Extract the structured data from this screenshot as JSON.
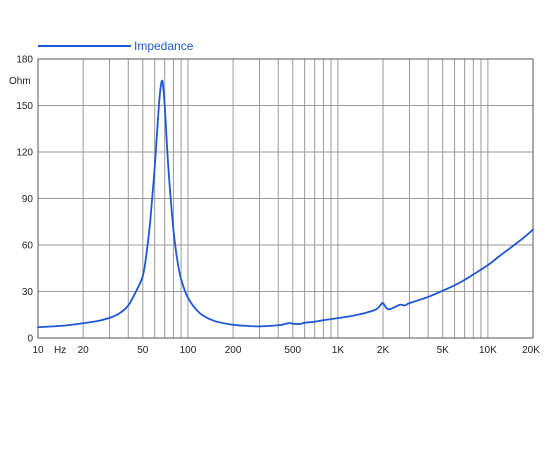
{
  "chart_data": {
    "type": "line",
    "x_scale": "log",
    "xlim": [
      10,
      20000
    ],
    "ylim": [
      0,
      180
    ],
    "y_unit": "Ohm",
    "x_unit": "Hz",
    "grid": true,
    "legend_position": "top-left",
    "x_ticks": [
      {
        "value": 10,
        "label": "10"
      },
      {
        "value": 20,
        "label": "20"
      },
      {
        "value": 50,
        "label": "50"
      },
      {
        "value": 100,
        "label": "100"
      },
      {
        "value": 200,
        "label": "200"
      },
      {
        "value": 500,
        "label": "500"
      },
      {
        "value": 1000,
        "label": "1K"
      },
      {
        "value": 2000,
        "label": "2K"
      },
      {
        "value": 5000,
        "label": "5K"
      },
      {
        "value": 10000,
        "label": "10K"
      },
      {
        "value": 20000,
        "label": "20K"
      }
    ],
    "y_ticks": [
      {
        "value": 0,
        "label": "0"
      },
      {
        "value": 30,
        "label": "30"
      },
      {
        "value": 60,
        "label": "60"
      },
      {
        "value": 90,
        "label": "90"
      },
      {
        "value": 120,
        "label": "120"
      },
      {
        "value": 150,
        "label": "150"
      },
      {
        "value": 180,
        "label": "180"
      }
    ],
    "series": [
      {
        "name": "Impedance",
        "color": "#1f57d6",
        "points": [
          [
            10,
            7.0
          ],
          [
            15,
            8.0
          ],
          [
            20,
            9.5
          ],
          [
            25,
            11.0
          ],
          [
            30,
            13.0
          ],
          [
            35,
            16.0
          ],
          [
            40,
            21.0
          ],
          [
            45,
            30.0
          ],
          [
            50,
            40.0
          ],
          [
            53,
            55.0
          ],
          [
            56,
            75.0
          ],
          [
            60,
            110.0
          ],
          [
            64,
            150.0
          ],
          [
            66,
            163.0
          ],
          [
            67,
            166.0
          ],
          [
            68,
            164.0
          ],
          [
            70,
            150.0
          ],
          [
            74,
            110.0
          ],
          [
            80,
            70.0
          ],
          [
            85,
            50.0
          ],
          [
            90,
            38.0
          ],
          [
            100,
            26.0
          ],
          [
            120,
            16.0
          ],
          [
            150,
            11.0
          ],
          [
            200,
            8.5
          ],
          [
            250,
            7.8
          ],
          [
            300,
            7.5
          ],
          [
            400,
            8.2
          ],
          [
            450,
            9.2
          ],
          [
            480,
            9.6
          ],
          [
            520,
            9.0
          ],
          [
            570,
            9.2
          ],
          [
            600,
            9.8
          ],
          [
            700,
            10.5
          ],
          [
            800,
            11.5
          ],
          [
            1000,
            12.8
          ],
          [
            1200,
            14.0
          ],
          [
            1500,
            16.0
          ],
          [
            1800,
            18.5
          ],
          [
            1950,
            22.0
          ],
          [
            2000,
            22.5
          ],
          [
            2100,
            19.5
          ],
          [
            2200,
            18.5
          ],
          [
            2400,
            20.0
          ],
          [
            2600,
            21.5
          ],
          [
            2800,
            21.0
          ],
          [
            3000,
            22.5
          ],
          [
            4000,
            26.5
          ],
          [
            5000,
            30.5
          ],
          [
            6000,
            34.0
          ],
          [
            7000,
            37.5
          ],
          [
            8000,
            41.0
          ],
          [
            10000,
            47.0
          ],
          [
            12000,
            53.0
          ],
          [
            15000,
            60.0
          ],
          [
            18000,
            66.0
          ],
          [
            20000,
            70.0
          ]
        ]
      }
    ]
  }
}
